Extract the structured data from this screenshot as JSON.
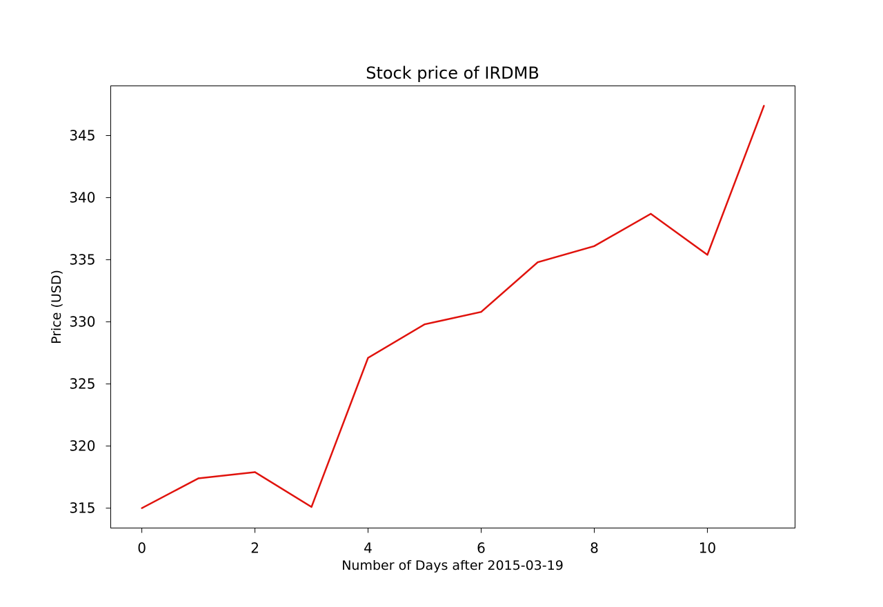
{
  "chart_data": {
    "type": "line",
    "title": "Stock price of IRDMB",
    "xlabel": "Number of Days after 2015-03-19",
    "ylabel": "Price (USD)",
    "x": [
      0,
      1,
      2,
      3,
      4,
      5,
      6,
      7,
      8,
      9,
      10,
      11
    ],
    "series": [
      {
        "values": [
          315.0,
          317.4,
          317.9,
          315.1,
          327.1,
          329.8,
          330.8,
          334.8,
          336.1,
          338.7,
          335.4,
          347.4
        ],
        "color": "#e0120c"
      }
    ],
    "xlim": [
      -0.55,
      11.55
    ],
    "ylim": [
      313.4,
      349.0
    ],
    "xticks": [
      0,
      2,
      4,
      6,
      8,
      10
    ],
    "yticks": [
      315,
      320,
      325,
      330,
      335,
      340,
      345
    ],
    "grid": false,
    "legend": "none"
  }
}
